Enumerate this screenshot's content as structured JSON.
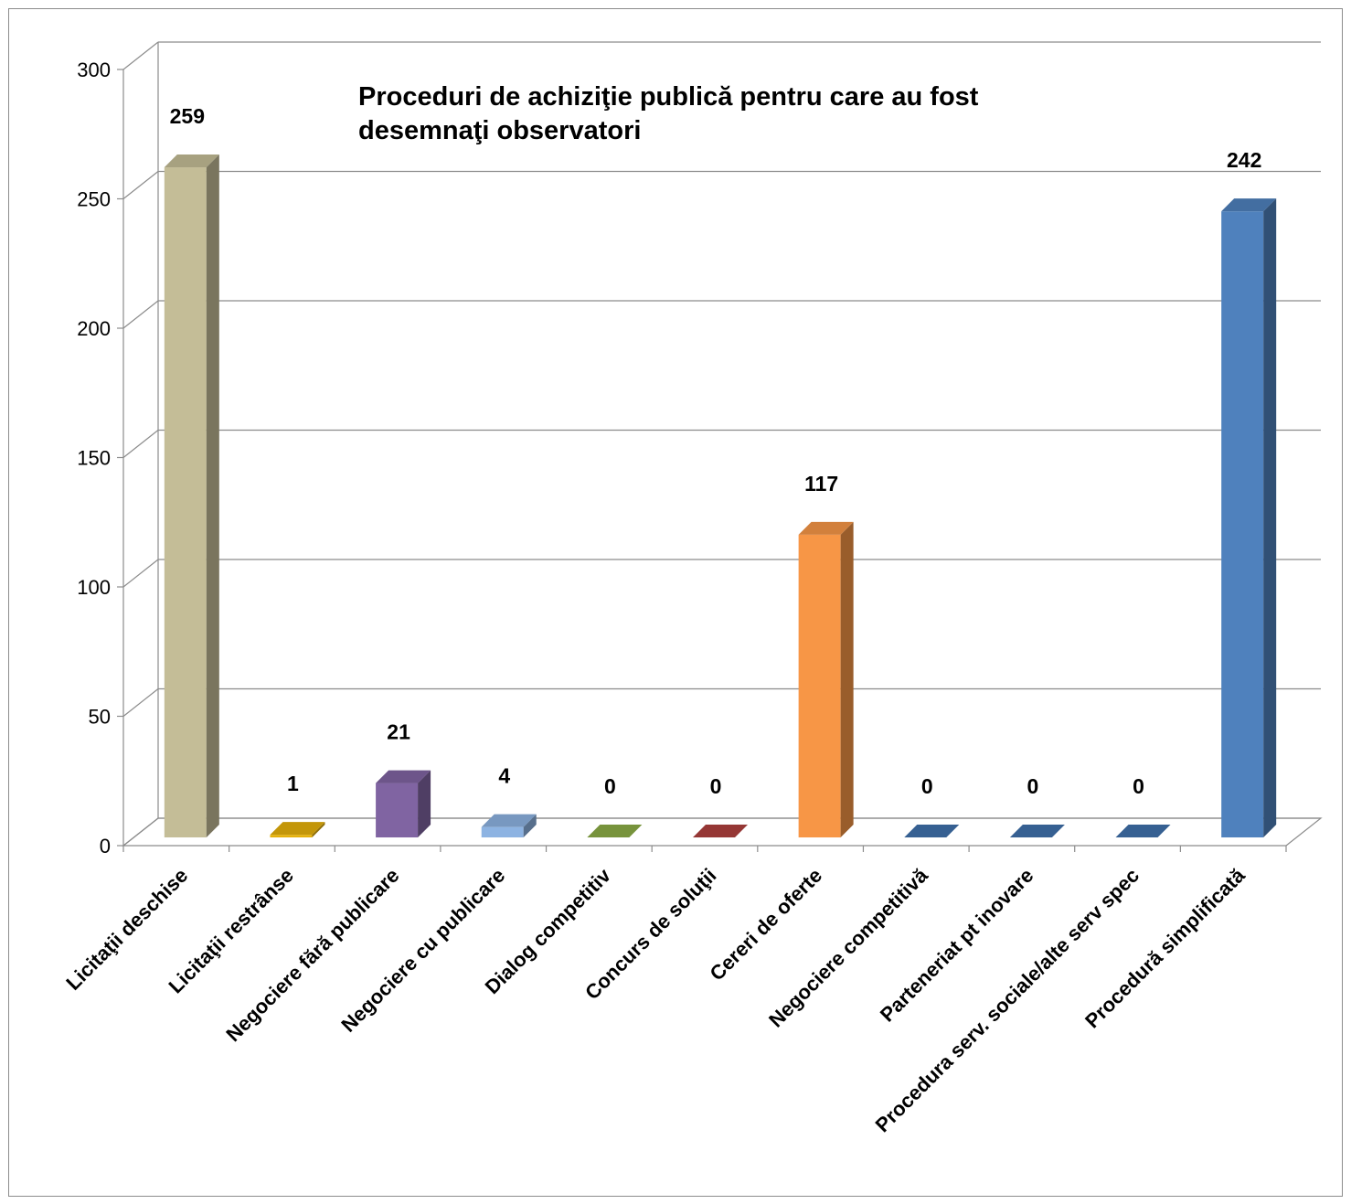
{
  "chart_data": {
    "type": "bar",
    "title": "Proceduri de achiziţie publică pentru care au fost desemnaţi observatori",
    "xlabel": "",
    "ylabel": "",
    "ylim": [
      0,
      300
    ],
    "yticks": [
      "0",
      "50",
      "100",
      "150",
      "200",
      "250",
      "300"
    ],
    "grid": true,
    "legend": "none",
    "categories": [
      "Licitaţii deschise",
      "Licitaţii restrânse",
      "Negociere fără publicare",
      "Negociere cu publicare",
      "Dialog competitiv",
      "Concurs de soluţii",
      "Cereri de oferte",
      "Negociere competitivă",
      "Parteneriat pt inovare",
      "Procedura serv. sociale/alte serv spec",
      "Procedură simplificată"
    ],
    "values": [
      259,
      1,
      21,
      4,
      0,
      0,
      117,
      0,
      0,
      0,
      242
    ],
    "data_labels": [
      "259",
      "1",
      "21",
      "4",
      "0",
      "0",
      "117",
      "0",
      "0",
      "0",
      "242"
    ],
    "colors": [
      "#c4bd97",
      "#e5b10b",
      "#8064a2",
      "#8db3e2",
      "#77933c",
      "#953735",
      "#f79646",
      "#366092",
      "#366092",
      "#366092",
      "#4f81bd"
    ]
  }
}
